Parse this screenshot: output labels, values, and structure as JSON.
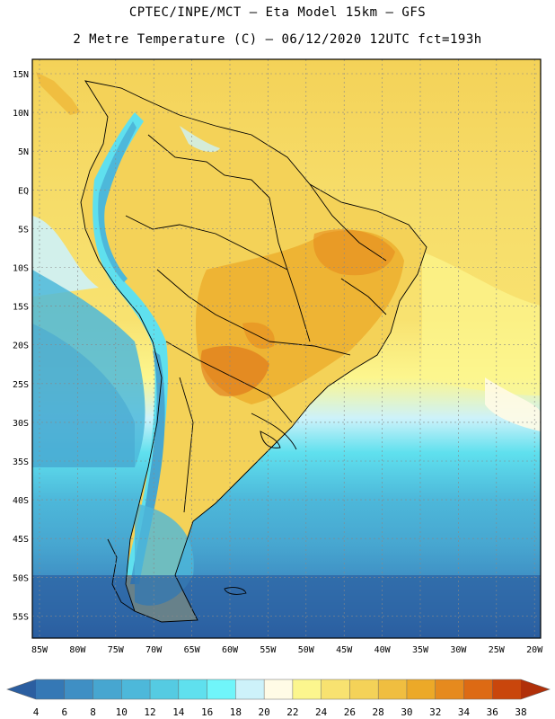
{
  "header": {
    "line1": "CPTEC/INPE/MCT –  Eta Model 15km – GFS",
    "line2": "2 Metre Temperature (C) – 06/12/2020 12UTC fct=193h"
  },
  "map": {
    "lat_ticks": [
      "15N",
      "10N",
      "5N",
      "EQ",
      "5S",
      "10S",
      "15S",
      "20S",
      "25S",
      "30S",
      "35S",
      "40S",
      "45S",
      "50S",
      "55S"
    ],
    "lon_ticks": [
      "85W",
      "80W",
      "75W",
      "70W",
      "65W",
      "60W",
      "55W",
      "50W",
      "45W",
      "40W",
      "35W",
      "30W",
      "25W",
      "20W"
    ]
  },
  "legend": {
    "labels": [
      "4",
      "6",
      "8",
      "10",
      "12",
      "14",
      "16",
      "18",
      "20",
      "22",
      "24",
      "26",
      "28",
      "30",
      "32",
      "34",
      "36",
      "38"
    ],
    "colors": [
      "#2b5ea0",
      "#3578b5",
      "#3f8fc4",
      "#47a6d0",
      "#4db8da",
      "#55cbe2",
      "#5fe0ee",
      "#70f5fa",
      "#cdf2fa",
      "#fffbe6",
      "#fcf68e",
      "#f8e270",
      "#f4d258",
      "#f0be40",
      "#eca928",
      "#e68a1e",
      "#dd6a14",
      "#c9460c",
      "#b0300a"
    ]
  }
}
